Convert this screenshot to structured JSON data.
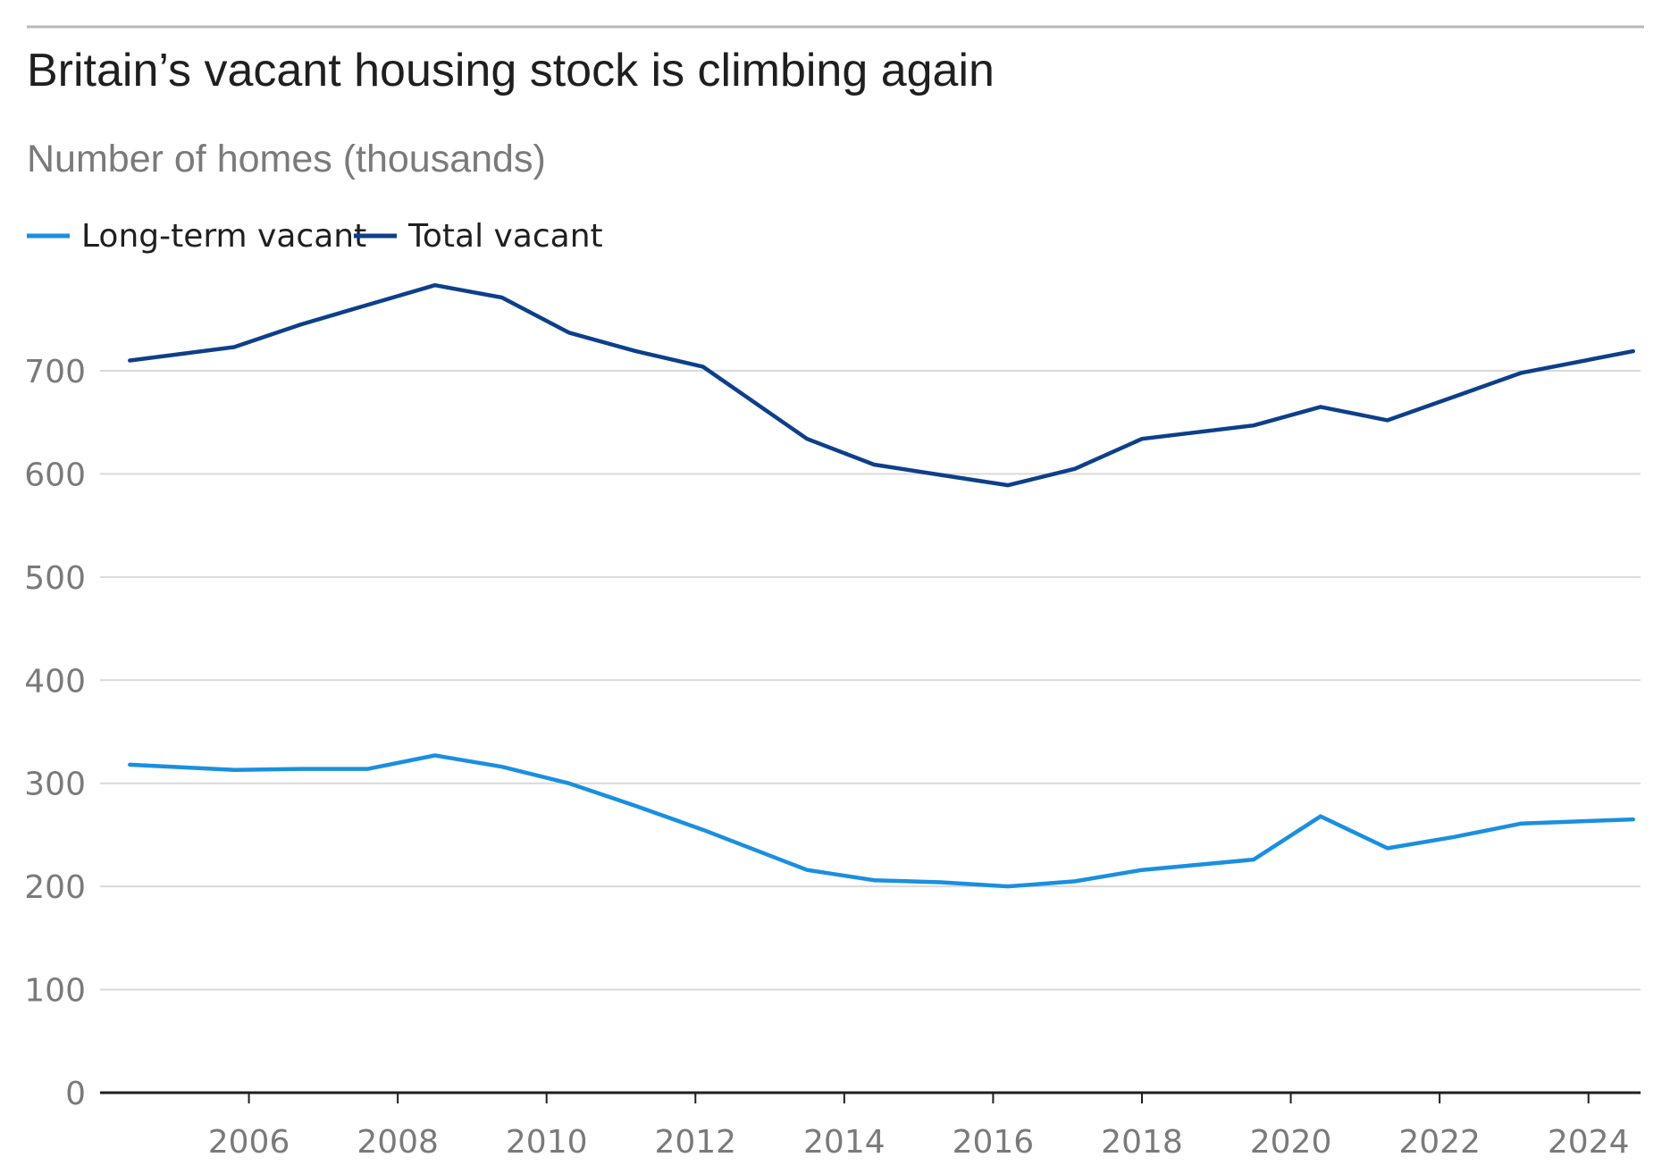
{
  "chart_data": {
    "type": "line",
    "title": "Britain’s vacant housing stock is climbing again",
    "subtitle": "Number of homes (thousands)",
    "xlabel": "",
    "ylabel": "",
    "xlim": [
      2004.0,
      2024.7
    ],
    "ylim": [
      0,
      800
    ],
    "x_ticks": [
      "2006",
      "2008",
      "2010",
      "2012",
      "2014",
      "2016",
      "2018",
      "2020",
      "2022",
      "2024"
    ],
    "y_ticks": [
      "0",
      "100",
      "200",
      "300",
      "400",
      "500",
      "600",
      "700"
    ],
    "grid": true,
    "legend_position": "top-left",
    "series": [
      {
        "name": "Long-term vacant",
        "color": "#1a8fe0",
        "points": [
          [
            2004.4,
            318
          ],
          [
            2005.8,
            313
          ],
          [
            2006.7,
            314
          ],
          [
            2007.6,
            314
          ],
          [
            2008.5,
            327
          ],
          [
            2009.4,
            316
          ],
          [
            2010.3,
            300
          ],
          [
            2011.2,
            278
          ],
          [
            2012.1,
            255
          ],
          [
            2013.5,
            216
          ],
          [
            2014.4,
            206
          ],
          [
            2015.3,
            204
          ],
          [
            2016.2,
            200
          ],
          [
            2017.1,
            205
          ],
          [
            2018.0,
            216
          ],
          [
            2019.5,
            226
          ],
          [
            2020.4,
            268
          ],
          [
            2021.3,
            237
          ],
          [
            2022.2,
            248
          ],
          [
            2023.1,
            261
          ],
          [
            2024.6,
            265
          ]
        ]
      },
      {
        "name": "Total vacant",
        "color": "#0d3f8a",
        "points": [
          [
            2004.4,
            710
          ],
          [
            2005.8,
            723
          ],
          [
            2006.7,
            745
          ],
          [
            2007.6,
            764
          ],
          [
            2008.5,
            783
          ],
          [
            2009.4,
            771
          ],
          [
            2010.3,
            737
          ],
          [
            2011.2,
            719
          ],
          [
            2012.1,
            704
          ],
          [
            2013.5,
            634
          ],
          [
            2014.4,
            609
          ],
          [
            2015.3,
            599
          ],
          [
            2016.2,
            589
          ],
          [
            2017.1,
            605
          ],
          [
            2018.0,
            634
          ],
          [
            2019.5,
            647
          ],
          [
            2020.4,
            665
          ],
          [
            2021.3,
            652
          ],
          [
            2022.2,
            675
          ],
          [
            2023.1,
            698
          ],
          [
            2024.6,
            719
          ]
        ]
      }
    ]
  }
}
